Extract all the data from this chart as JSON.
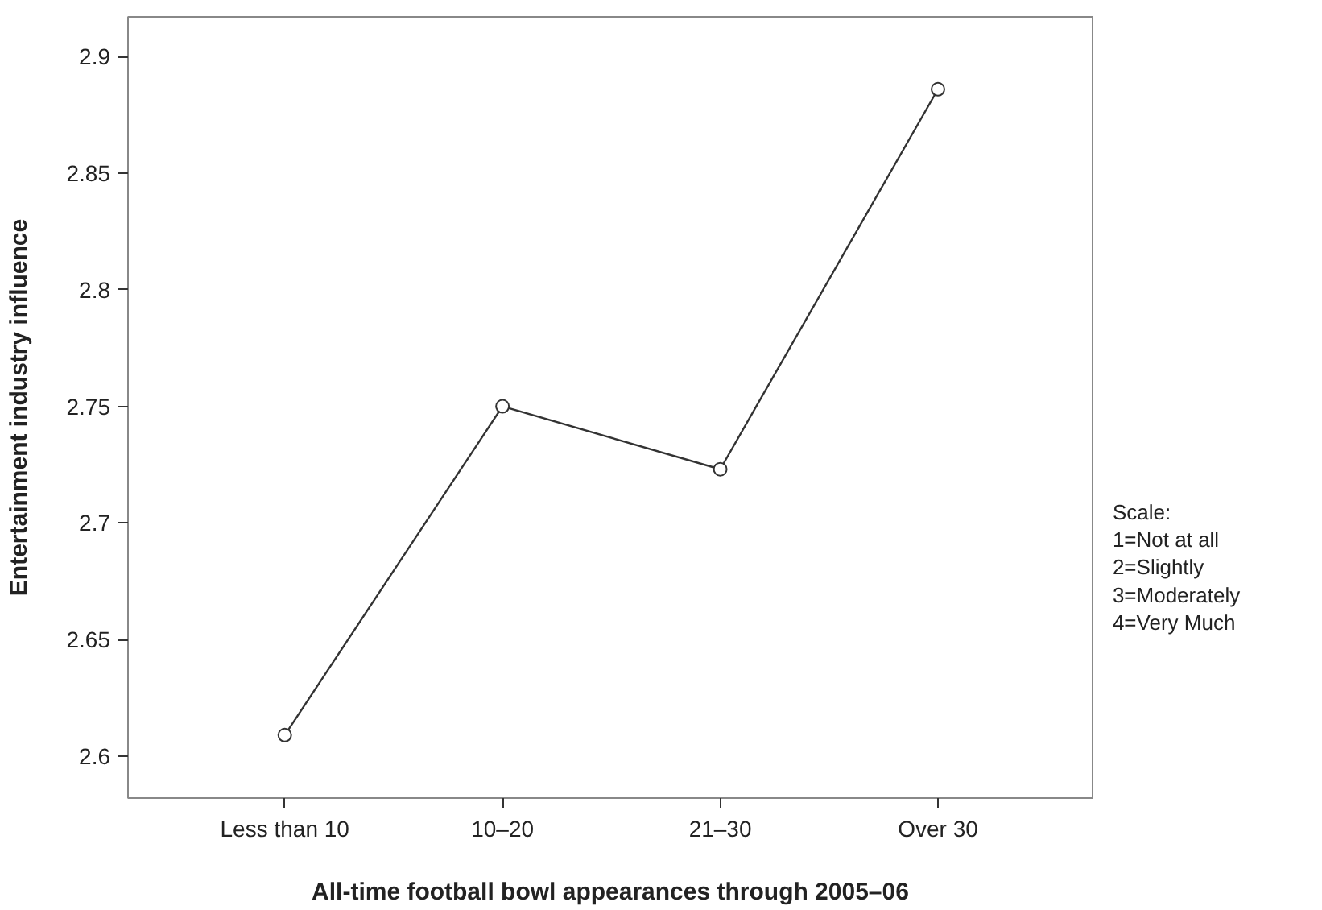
{
  "chart_data": {
    "type": "line",
    "xlabel": "All-time football bowl appearances through 2005–06",
    "ylabel": "Entertainment industry influence",
    "categories": [
      "Less than 10",
      "10–20",
      "21–30",
      "Over 30"
    ],
    "series": [
      {
        "color": "#333333",
        "values": [
          2.609,
          2.75,
          2.723,
          2.886
        ]
      }
    ],
    "ylim": [
      2.582,
      2.917
    ],
    "yticks": [
      2.6,
      2.65,
      2.7,
      2.75,
      2.8,
      2.85,
      2.9
    ],
    "marker": "circle",
    "line_style": "solid",
    "grid": false,
    "annotations": [
      "Scale:",
      "1=Not at all",
      "2=Slightly",
      "3=Moderately",
      "4=Very Much"
    ]
  }
}
